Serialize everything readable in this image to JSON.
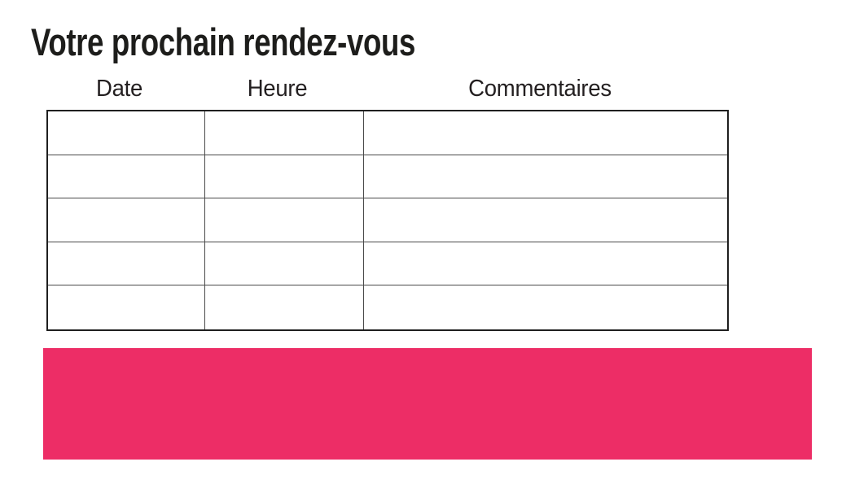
{
  "slide": {
    "title": "Votre prochain rendez-vous"
  },
  "table": {
    "headers": [
      "Date",
      "Heure",
      "Commentaires"
    ],
    "rows": [
      [
        "",
        "",
        ""
      ],
      [
        "",
        "",
        ""
      ],
      [
        "",
        "",
        ""
      ],
      [
        "",
        "",
        ""
      ],
      [
        "",
        "",
        ""
      ]
    ]
  },
  "colors": {
    "accent_pink": "#ED2D66",
    "title_text": "#1D1D1B",
    "header_text": "#231F20",
    "table_border_outer": "#1F1F1F",
    "table_border_inner": "#4A4A4A"
  }
}
